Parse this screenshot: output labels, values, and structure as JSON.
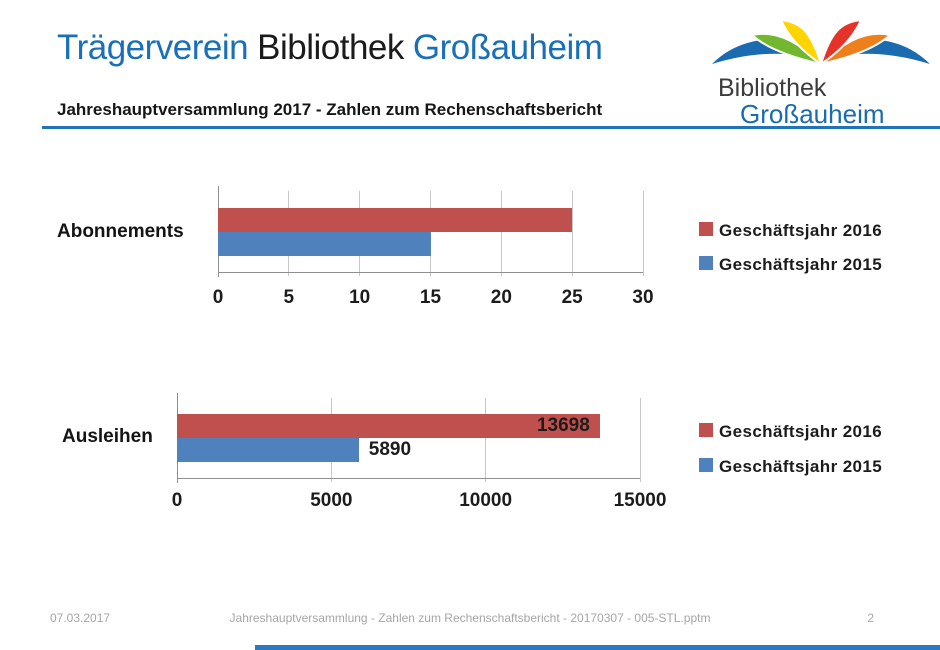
{
  "header": {
    "title": {
      "part1": "Trägerverein",
      "part2": "Bibliothek",
      "part3": "Großauheim"
    },
    "subtitle": "Jahreshauptversammlung 2017 - Zahlen zum Rechenschaftsbericht"
  },
  "logo": {
    "text_line1": "Bibliothek",
    "text_line2": "Großauheim",
    "icon": "open-book-logo",
    "colors": {
      "green": "#72b72d",
      "yellow": "#ffd400",
      "red": "#e5332a",
      "orange": "#ee7f1b",
      "blue": "#1a6bb0"
    }
  },
  "chart_data": [
    {
      "type": "bar",
      "orientation": "horizontal",
      "categories": [
        "Abonnements"
      ],
      "series": [
        {
          "name": "Geschäftsjahr 2016",
          "values": [
            25
          ],
          "color": "#c0504d"
        },
        {
          "name": "Geschäftsjahr 2015",
          "values": [
            15
          ],
          "color": "#4f81bd"
        }
      ],
      "xlim": [
        0,
        30
      ],
      "xticks": [
        0,
        5,
        10,
        15,
        20,
        25,
        30
      ],
      "grid": true,
      "legend_position": "right",
      "data_labels": false
    },
    {
      "type": "bar",
      "orientation": "horizontal",
      "categories": [
        "Ausleihen"
      ],
      "series": [
        {
          "name": "Geschäftsjahr 2016",
          "values": [
            13698
          ],
          "color": "#c0504d"
        },
        {
          "name": "Geschäftsjahr 2015",
          "values": [
            5890
          ],
          "color": "#4f81bd"
        }
      ],
      "xlim": [
        0,
        15000
      ],
      "xticks": [
        0,
        5000,
        10000,
        15000
      ],
      "grid": true,
      "legend_position": "right",
      "data_labels": true
    }
  ],
  "footer": {
    "date": "07.03.2017",
    "document_title": "Jahreshauptversammlung - Zahlen zum Rechenschaftsbericht - 20170307 - 005-STL.pptm",
    "page_number": "2"
  },
  "colors": {
    "accent_blue": "#1a70b7",
    "series_red": "#c0504d",
    "series_blue": "#4f81bd",
    "grid_gray": "#c7c7c7",
    "axis_gray": "#8f8f8f",
    "footer_gray": "#a6a6a6"
  }
}
